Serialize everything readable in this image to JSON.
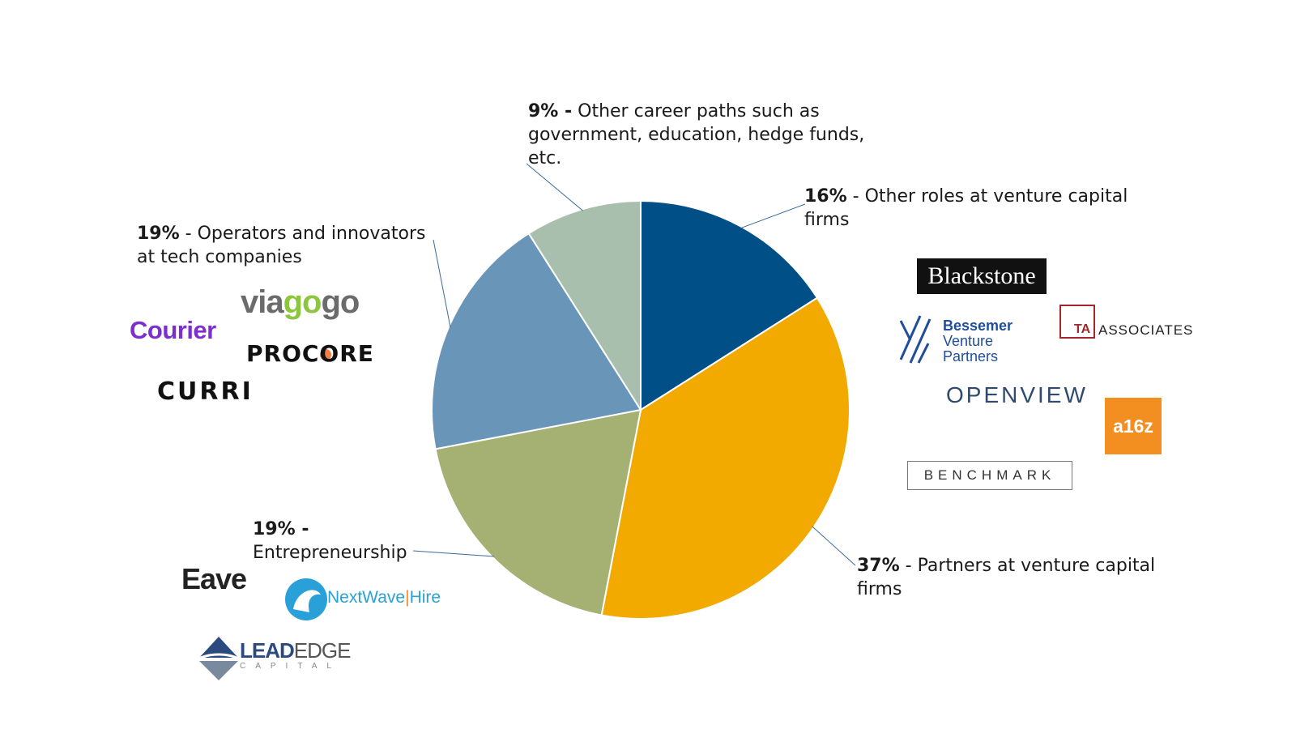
{
  "chart_data": {
    "type": "pie",
    "start_angle_deg": 0,
    "direction": "clockwise",
    "slices": [
      {
        "name": "Other roles at venture capital firms",
        "percent": 16,
        "label_pct": "16%",
        "label_text": "- Other roles at venture capital firms",
        "color": "#004f87"
      },
      {
        "name": "Partners at venture capital firms",
        "percent": 37,
        "label_pct": "37%",
        "label_text": "- Partners at venture capital firms",
        "color": "#f2a900"
      },
      {
        "name": "Entrepreneurship",
        "percent": 19,
        "label_pct": "19% -",
        "label_text": "Entrepreneurship",
        "color": "#a5b073"
      },
      {
        "name": "Operators and innovators at tech companies",
        "percent": 19,
        "label_pct": "19%",
        "label_text": "- Operators and innovators at tech companies",
        "color": "#6895b8"
      },
      {
        "name": "Other career paths such as government, education, hedge funds, etc.",
        "percent": 9,
        "label_pct": "9% -",
        "label_text": "Other career paths such as government, education, hedge funds, etc.",
        "color": "#a8bfad"
      }
    ],
    "leader_line_color": "#3a6a9a",
    "grid": false,
    "legend": "none"
  },
  "logos": {
    "vc_firms": [
      "Blackstone",
      "Bessemer Venture Partners",
      "TA ASSOCIATES",
      "OPENVIEW",
      "a16z",
      "BENCHMARK"
    ],
    "tech_companies": [
      "viagogo",
      "Courier",
      "PROCORE",
      "CURRI"
    ],
    "startups": [
      "Eave",
      "NextWave Hire",
      "LEADEDGE CAPITAL"
    ],
    "text": {
      "viagogo_a": "via",
      "viagogo_b": "go",
      "viagogo_c": "go",
      "courier": "Courier",
      "procore": "PROCORE",
      "curri": "CURRI",
      "blackstone": "Blackstone",
      "bessemer_1": "Bessemer",
      "bessemer_2": "Venture",
      "bessemer_3": "Partners",
      "ta": "TA",
      "ta_assoc": "ASSOCIATES",
      "openview": "OPENVIEW",
      "a16z": "a16z",
      "benchmark": "BENCHMARK",
      "eave": "Eave",
      "nextwave_a": "NextWave",
      "nextwave_b": "Hire",
      "leadedge_a": "LEAD",
      "leadedge_b": "EDGE",
      "leadedge_cap": "CAPITAL"
    },
    "colors": {
      "courier": "#7b2fd0",
      "viagogo_green": "#8cc63f",
      "procore_orange": "#f47e42",
      "bessemer_blue": "#1f4e9a",
      "ta_red": "#a3262a",
      "a16z_orange": "#f38f21",
      "nextwave_blue": "#2aa0d8",
      "leadedge_blue": "#2b4a7e"
    }
  }
}
